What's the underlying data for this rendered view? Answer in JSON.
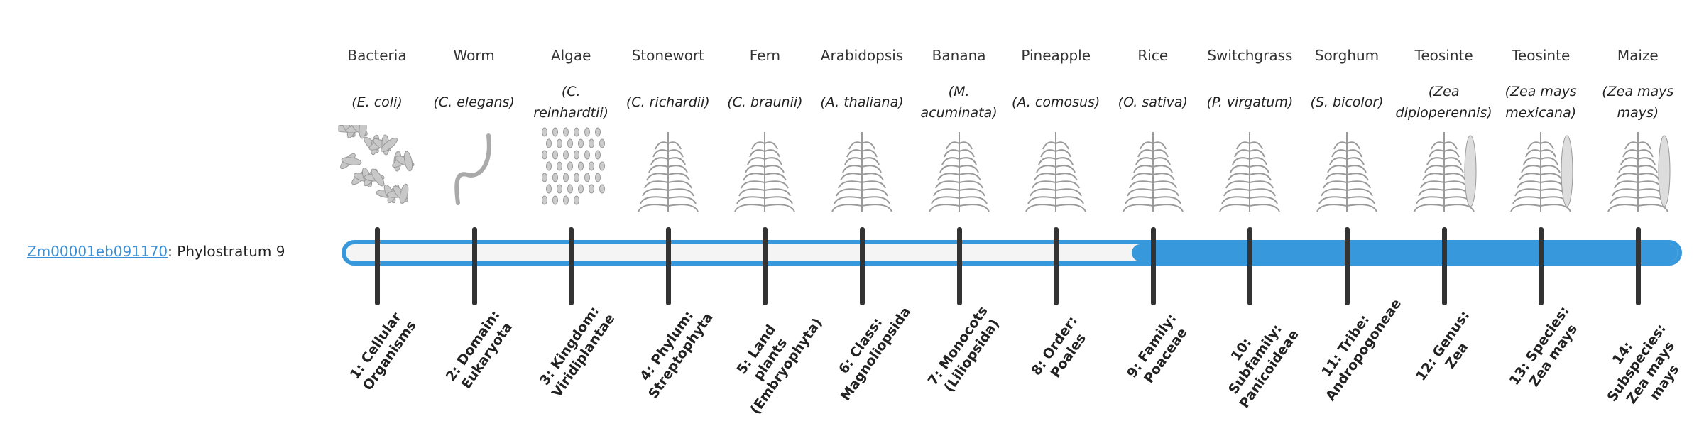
{
  "gene": {
    "id": "Zm00001eb091170",
    "separator": ":",
    "stratum_text": "Phylostratum 9"
  },
  "colors": {
    "accent": "#3799db",
    "tick": "#333333",
    "bar_empty": "#f4f4f4",
    "link": "#3a8fd6"
  },
  "current_stratum": 9,
  "total_strata": 14,
  "strata": [
    {
      "common": "Bacteria",
      "latin": "(E. coli)",
      "rank": "1: Cellular Organisms",
      "icon": "bacteria-illustration"
    },
    {
      "common": "Worm",
      "latin": "(C. elegans)",
      "rank": "2: Domain: Eukaryota",
      "icon": "worm-illustration"
    },
    {
      "common": "Algae",
      "latin": "(C. reinhardtii)",
      "rank": "3: Kingdom: Viridiplantae",
      "icon": "algae-illustration"
    },
    {
      "common": "Stonewort",
      "latin": "(C. richardii)",
      "rank": "4: Phylum: Streptophyta",
      "icon": "stonewort-illustration"
    },
    {
      "common": "Fern",
      "latin": "(C. braunii)",
      "rank": "5: Land plants (Embryophyta)",
      "icon": "fern-illustration"
    },
    {
      "common": "Arabidopsis",
      "latin": "(A. thaliana)",
      "rank": "6: Class: Magnoliopsida",
      "icon": "arabidopsis-illustration"
    },
    {
      "common": "Banana",
      "latin": "(M. acuminata)",
      "rank": "7: Monocots (Liliopsida)",
      "icon": "banana-illustration"
    },
    {
      "common": "Pineapple",
      "latin": "(A. comosus)",
      "rank": "8: Order: Poales",
      "icon": "pineapple-illustration"
    },
    {
      "common": "Rice",
      "latin": "(O. sativa)",
      "rank": "9: Family: Poaceae",
      "icon": "rice-illustration"
    },
    {
      "common": "Switchgrass",
      "latin": "(P. virgatum)",
      "rank": "10: Subfamily: Panicoideae",
      "icon": "switchgrass-illustration"
    },
    {
      "common": "Sorghum",
      "latin": "(S. bicolor)",
      "rank": "11: Tribe: Andropogoneae",
      "icon": "sorghum-illustration"
    },
    {
      "common": "Teosinte",
      "latin": "(Zea diploperennis)",
      "rank": "12: Genus: Zea",
      "icon": "teosinte-illustration"
    },
    {
      "common": "Teosinte",
      "latin": "(Zea mays mexicana)",
      "rank": "13: Species: Zea mays",
      "icon": "teosinte-mexicana-illustration"
    },
    {
      "common": "Maize",
      "latin": "(Zea mays mays)",
      "rank": "14: Subspecies: Zea mays mays",
      "icon": "maize-illustration"
    }
  ]
}
